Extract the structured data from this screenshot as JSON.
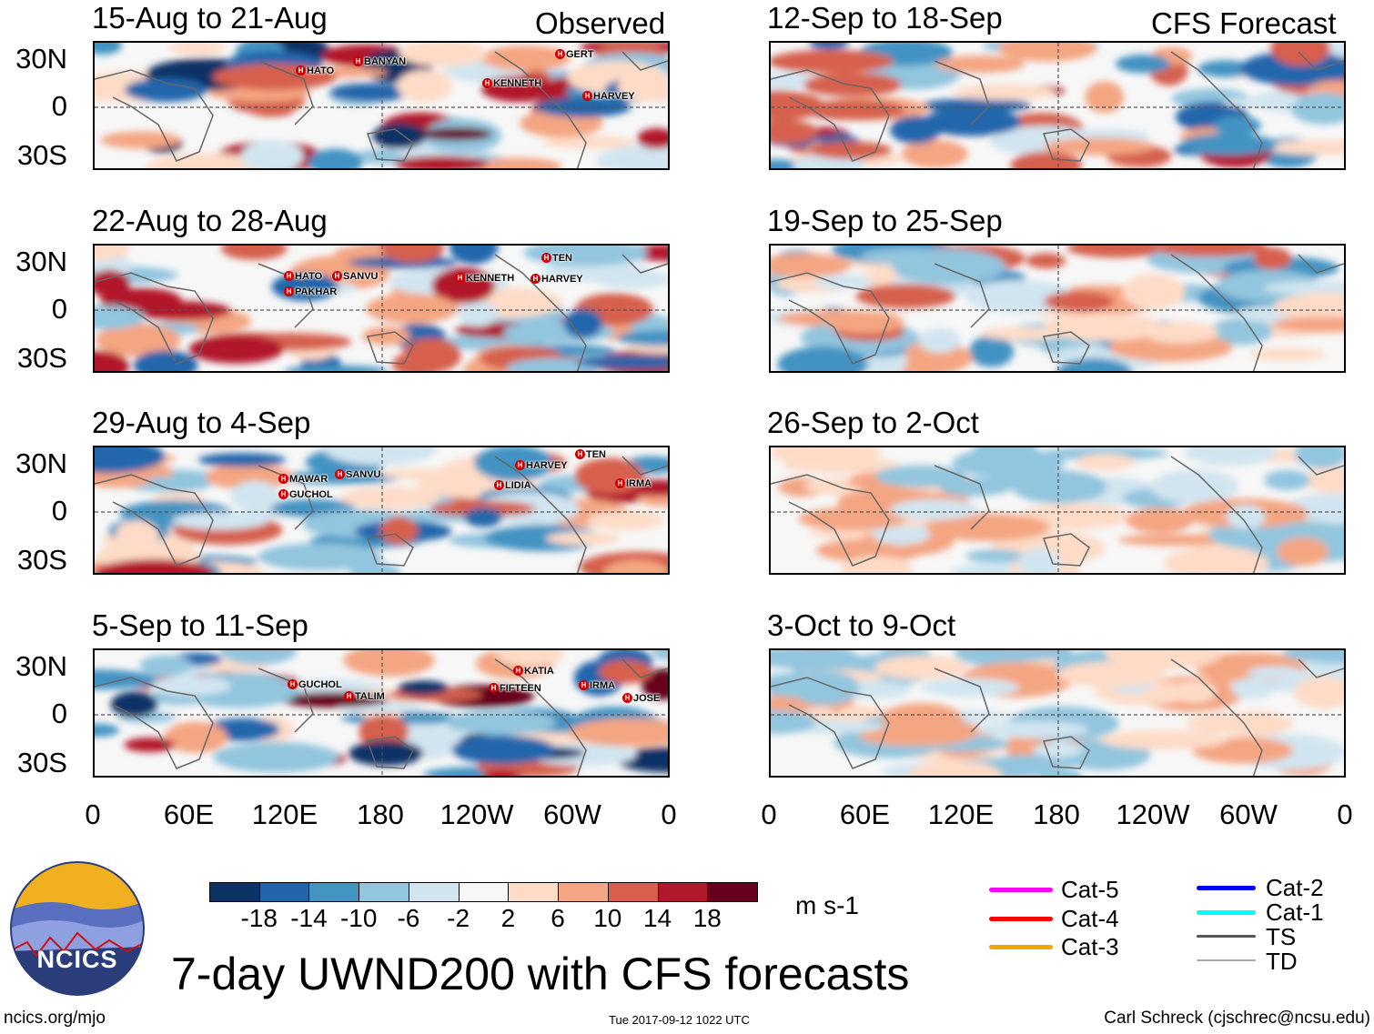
{
  "figure_title": "7-day UWND200 with CFS forecasts",
  "observed_label": "Observed",
  "forecast_label": "CFS Forecast",
  "panels_observed": [
    {
      "title": "15-Aug to 21-Aug",
      "storms": [
        "HATO",
        "BANYAN",
        "KENNETH",
        "GERT",
        "HARVEY"
      ]
    },
    {
      "title": "22-Aug to 28-Aug",
      "storms": [
        "HATO",
        "PAKHAR",
        "SANVU",
        "KENNETH",
        "TEN",
        "HARVEY"
      ]
    },
    {
      "title": "29-Aug to 4-Sep",
      "storms": [
        "MAWAR",
        "GUCHOL",
        "SANVU",
        "LIDIA",
        "HARVEY",
        "TEN",
        "IRMA"
      ]
    },
    {
      "title": "5-Sep to 11-Sep",
      "storms": [
        "GUCHOL",
        "TALIM",
        "FIFTEEN",
        "KATIA",
        "IRMA",
        "JOSE"
      ]
    }
  ],
  "panels_forecast": [
    {
      "title": "12-Sep to 18-Sep"
    },
    {
      "title": "19-Sep to 25-Sep"
    },
    {
      "title": "26-Sep to 2-Oct"
    },
    {
      "title": "3-Oct to 9-Oct"
    }
  ],
  "chart_data": {
    "type": "heatmap",
    "variable": "UWND200",
    "units": "m s-1",
    "y_tick_labels": [
      "30N",
      "0",
      "30S"
    ],
    "x_tick_labels": [
      "0",
      "60E",
      "120E",
      "180",
      "120W",
      "60W",
      "0"
    ],
    "colorbar": {
      "levels": [
        "-18",
        "-14",
        "-10",
        "-6",
        "-2",
        "2",
        "6",
        "10",
        "14",
        "18"
      ],
      "colors": [
        "#0b3366",
        "#2166ac",
        "#4393c3",
        "#92c5de",
        "#d1e5f0",
        "#f7f7f7",
        "#fddbc7",
        "#f4a582",
        "#d6604d",
        "#b2182b",
        "#67001f"
      ]
    }
  },
  "legend": [
    {
      "label": "Cat-5",
      "color": "#ff00ff"
    },
    {
      "label": "Cat-4",
      "color": "#ff0000"
    },
    {
      "label": "Cat-3",
      "color": "#f0a800"
    },
    {
      "label": "Cat-2",
      "color": "#0000ff"
    },
    {
      "label": "Cat-1",
      "color": "#00ffff"
    },
    {
      "label": "TS",
      "color": "#555555"
    },
    {
      "label": "TD",
      "color": "#aaaaaa"
    }
  ],
  "logo_text": "NCICS",
  "footer": {
    "url": "ncics.org/mjo",
    "timestamp": "Tue 2017-09-12 1022 UTC",
    "author": "Carl Schreck (cjschrec@ncsu.edu)"
  }
}
